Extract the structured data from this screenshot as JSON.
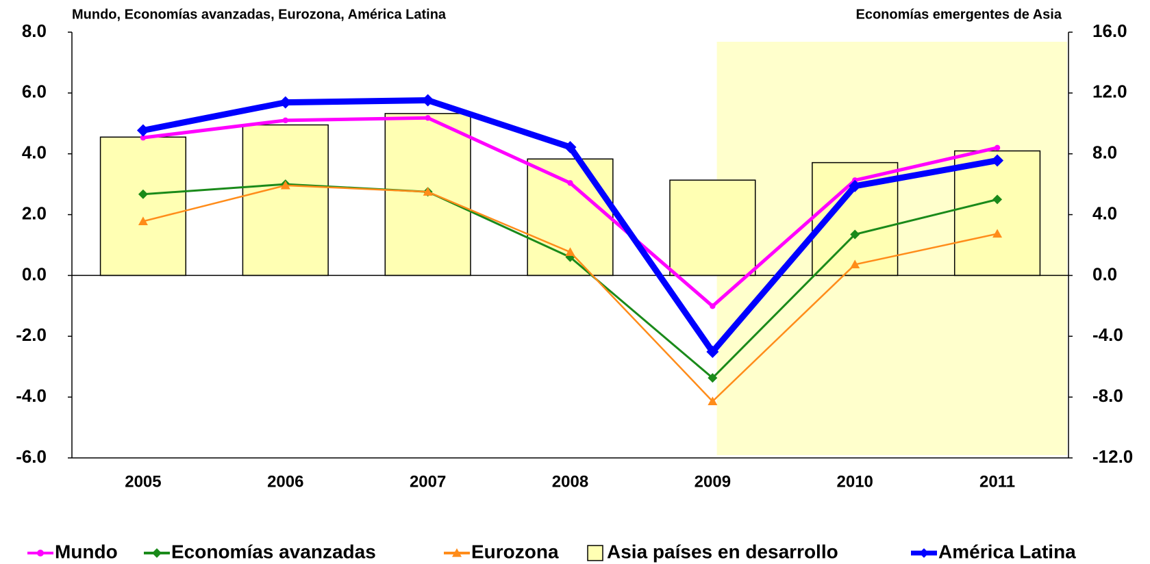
{
  "chart_data": {
    "type": "combo",
    "title": "Mundo, Economías avanzadas, Eurozona, América Latina",
    "y2_title": "Economías emergentes de Asia",
    "categories": [
      "2005",
      "2006",
      "2007",
      "2008",
      "2009",
      "2010",
      "2011"
    ],
    "ylim": [
      -6,
      8
    ],
    "yticks": [
      {
        "value": -6,
        "label": "-6.0"
      },
      {
        "value": -4,
        "label": "-4.0"
      },
      {
        "value": -2,
        "label": "-2.0"
      },
      {
        "value": 0,
        "label": "0.0"
      },
      {
        "value": 2,
        "label": "2.0"
      },
      {
        "value": 4,
        "label": "4.0"
      },
      {
        "value": 6,
        "label": "6.0"
      },
      {
        "value": 8,
        "label": "8.0"
      }
    ],
    "y2lim": [
      -12,
      16
    ],
    "y2ticks": [
      {
        "value": -12,
        "label": "-12.0"
      },
      {
        "value": -8,
        "label": "-8.0"
      },
      {
        "value": -4,
        "label": "-4.0"
      },
      {
        "value": 0,
        "label": "0.0"
      },
      {
        "value": 4,
        "label": "4.0"
      },
      {
        "value": 8,
        "label": "8.0"
      },
      {
        "value": 12,
        "label": "12.0"
      },
      {
        "value": 16,
        "label": "16.0"
      }
    ],
    "series": [
      {
        "name": "Mundo",
        "type": "line",
        "marker": "circle",
        "color": "#ff00ff",
        "values": [
          4.53,
          5.1,
          5.18,
          3.04,
          -1.01,
          3.13,
          4.2
        ]
      },
      {
        "name": "Economías avanzadas",
        "type": "line",
        "marker": "diamond",
        "color": "#1a8a1a",
        "values": [
          2.67,
          3.0,
          2.75,
          0.6,
          -3.37,
          1.35,
          2.5
        ]
      },
      {
        "name": "Eurozona",
        "type": "line",
        "marker": "triangle",
        "color": "#ff8c1a",
        "values": [
          1.78,
          2.96,
          2.75,
          0.77,
          -4.14,
          0.36,
          1.37
        ]
      },
      {
        "name": "Asia países en desarrollo",
        "type": "bar",
        "axis": "y2",
        "color": "#ffffb3",
        "values": [
          9.1,
          9.9,
          10.65,
          7.66,
          6.27,
          7.42,
          8.19
        ]
      },
      {
        "name": "América Latina",
        "type": "line",
        "marker": "diamond",
        "color": "#0000ff",
        "values": [
          4.77,
          5.69,
          5.76,
          4.22,
          -2.51,
          2.94,
          3.78
        ]
      }
    ]
  }
}
